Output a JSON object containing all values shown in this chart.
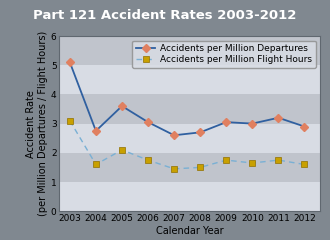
{
  "title": "Part 121 Accident Rates 2003-2012",
  "xlabel": "Calendar Year",
  "ylabel": "Accident Rate\n(per Million Departures / Flight Hours)",
  "years": [
    2003,
    2004,
    2005,
    2006,
    2007,
    2008,
    2009,
    2010,
    2011,
    2012
  ],
  "departures": [
    5.1,
    2.75,
    3.6,
    3.05,
    2.6,
    2.7,
    3.05,
    3.0,
    3.2,
    2.9
  ],
  "flight_hours": [
    3.1,
    1.6,
    2.1,
    1.75,
    1.45,
    1.5,
    1.75,
    1.65,
    1.75,
    1.6
  ],
  "dep_line_color": "#3060a0",
  "dep_marker_color": "#e08060",
  "fh_line_color": "#7ab0d4",
  "fh_marker_color": "#c8a000",
  "fh_marker_edge": "#907000",
  "ylim": [
    0,
    6
  ],
  "yticks": [
    0,
    1,
    2,
    3,
    4,
    5,
    6
  ],
  "bg_outer": "#808890",
  "bg_plot": "#c8ccd4",
  "band_light": "#d8dce4",
  "band_dark": "#c0c4cc",
  "title_bg": "#606870",
  "title_color": "#ffffff",
  "title_fontsize": 9.5,
  "label_fontsize": 7,
  "tick_fontsize": 6.5,
  "legend_fontsize": 6.5
}
